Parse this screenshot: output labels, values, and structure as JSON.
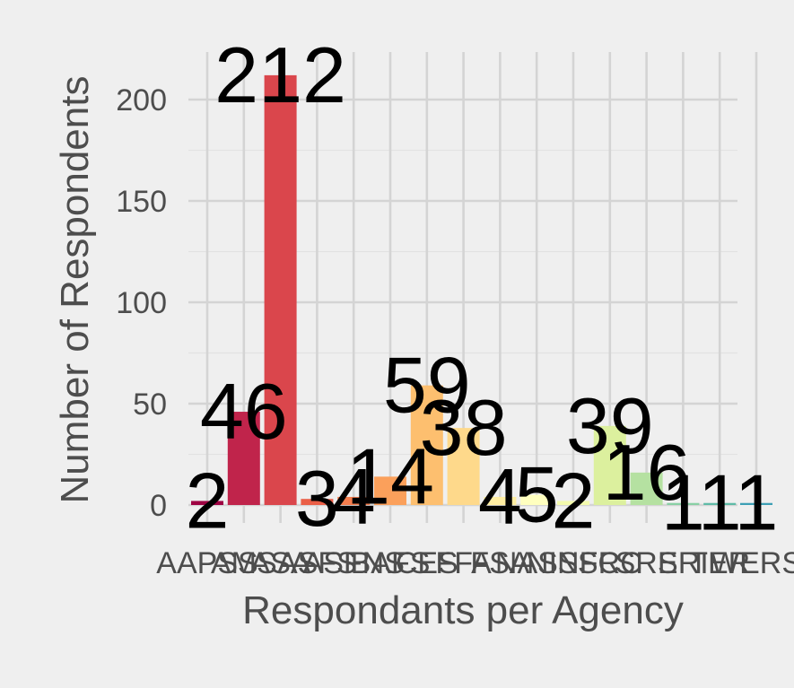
{
  "chart_data": {
    "type": "bar",
    "categories": [
      "AAPSS",
      "AMS",
      "ASA",
      "ASFS",
      "ASFNS",
      "BAFS",
      "CES",
      "FFA",
      "FSA",
      "NASS",
      "NINFC",
      "SRC",
      "SRE",
      "SRI",
      "TER",
      "WERS"
    ],
    "values": [
      2,
      46,
      212,
      3,
      4,
      14,
      59,
      38,
      4,
      5,
      2,
      39,
      16,
      1,
      1,
      1
    ],
    "data_labels": [
      "2",
      "46",
      "212",
      "3",
      "4",
      "14",
      "59",
      "38",
      "4",
      "5",
      "2",
      "39",
      "16",
      "1",
      "1",
      "1"
    ],
    "colors": [
      "#9e0142",
      "#c0244b",
      "#da464c",
      "#ea5f47",
      "#f47d4d",
      "#fba05b",
      "#fdbf6f",
      "#fed98b",
      "#feeda2",
      "#ffffbf",
      "#f3faad",
      "#dcf09e",
      "#b5e1a1",
      "#89d0a5",
      "#5fbba7",
      "#3d9fb5"
    ],
    "xlabel": "Respondants per Agency",
    "ylabel": "Number of Respondents",
    "ylim": [
      0,
      222
    ],
    "yticks": [
      0,
      50,
      100,
      150,
      200
    ],
    "ytick_labels": [
      "0",
      "50",
      "100",
      "150",
      "200"
    ],
    "grid": true,
    "legend": "none"
  }
}
